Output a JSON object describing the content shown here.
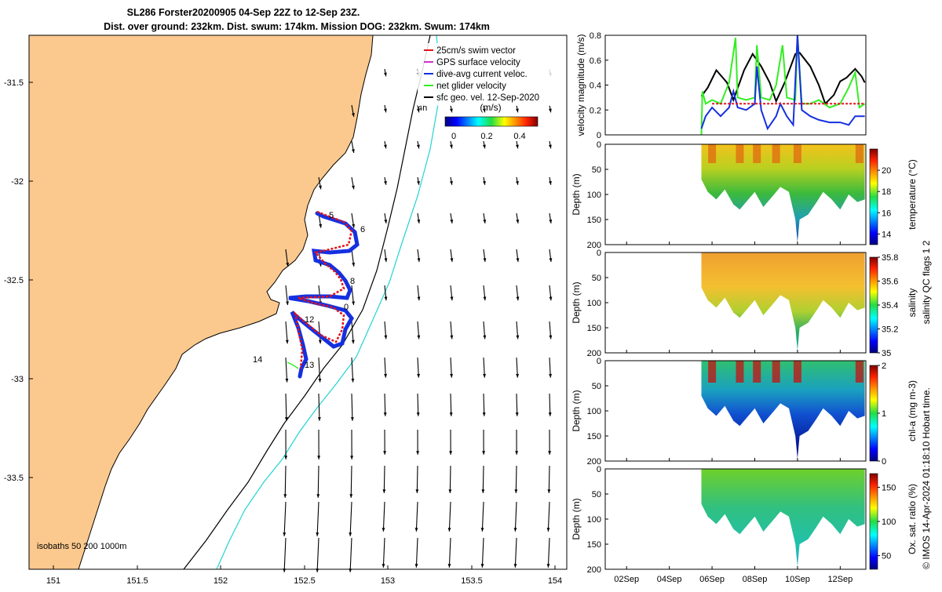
{
  "title": {
    "line1": "SL286 Forster20200905 04-Sep 22Z to 12-Sep 23Z.",
    "line2": "Dist. over ground: 232km. Dist. swum: 174km. Mission DOG: 232km. Swum: 174km"
  },
  "colors": {
    "land": "#fbc98e",
    "swim": "#e4121b",
    "gps": "#cc33cc",
    "current": "#1530e0",
    "net": "#33ee22",
    "sfc": "#000000",
    "iso_near": "#000000",
    "iso_far": "#22d3d3"
  },
  "map": {
    "xticks": [
      "151",
      "151.5",
      "152",
      "152.5",
      "153",
      "153.5",
      "154"
    ],
    "yticks": [
      "-31.5",
      "-32",
      "-32.5",
      "-33",
      "-33.5"
    ],
    "legend": [
      {
        "label": "25cm/s swim vector",
        "color": "#e4121b"
      },
      {
        "label": "GPS surface velocity",
        "color": "#cc33cc"
      },
      {
        "label": "dive-avg current veloc.",
        "color": "#1530e0"
      },
      {
        "label": "net glider velocity",
        "color": "#33ee22"
      },
      {
        "label": "sfc geo. vel. 12-Sep-2020",
        "color": "#000000"
      }
    ],
    "colorbar_label": "(m/s)",
    "colorbar_ticks": [
      "0",
      "0.2",
      "0.4"
    ],
    "isobaths_label": "isobaths 50 200  1000m",
    "day_labels": [
      "4h",
      "5",
      "6",
      "8",
      "0",
      "12",
      "13",
      "14"
    ]
  },
  "chart_data": [
    {
      "type": "line",
      "ylabel": "velocity magnitude (m/s)",
      "ylim": [
        0,
        0.8
      ],
      "yticks": [
        "0",
        "0.2",
        "0.4",
        "0.6",
        "0.8"
      ],
      "series": [
        {
          "color": "#000000",
          "values": [
            [
              5.5,
              0.31
            ],
            [
              5.8,
              0.38
            ],
            [
              6.2,
              0.52
            ],
            [
              6.7,
              0.42
            ],
            [
              7.0,
              0.28
            ],
            [
              7.5,
              0.52
            ],
            [
              7.9,
              0.65
            ],
            [
              8.3,
              0.55
            ],
            [
              8.7,
              0.42
            ],
            [
              9.0,
              0.27
            ],
            [
              9.4,
              0.42
            ],
            [
              9.9,
              0.65
            ],
            [
              10.1,
              0.66
            ],
            [
              10.6,
              0.55
            ],
            [
              11.0,
              0.4
            ],
            [
              11.3,
              0.25
            ],
            [
              11.7,
              0.32
            ],
            [
              12.0,
              0.43
            ],
            [
              12.3,
              0.46
            ],
            [
              12.7,
              0.53
            ],
            [
              13.0,
              0.47
            ],
            [
              13.15,
              0.42
            ]
          ]
        },
        {
          "color": "#33ee22",
          "values": [
            [
              5.5,
              0.0
            ],
            [
              5.55,
              0.35
            ],
            [
              5.7,
              0.25
            ],
            [
              6.0,
              0.28
            ],
            [
              6.4,
              0.25
            ],
            [
              6.8,
              0.42
            ],
            [
              7.1,
              0.78
            ],
            [
              7.2,
              0.3
            ],
            [
              7.6,
              0.28
            ],
            [
              8.0,
              0.3
            ],
            [
              8.1,
              0.72
            ],
            [
              8.3,
              0.3
            ],
            [
              8.7,
              0.28
            ],
            [
              9.0,
              0.4
            ],
            [
              9.3,
              0.72
            ],
            [
              9.5,
              0.3
            ],
            [
              9.9,
              0.28
            ],
            [
              10.0,
              0.8
            ],
            [
              10.2,
              0.25
            ],
            [
              10.6,
              0.25
            ],
            [
              11.0,
              0.28
            ],
            [
              11.5,
              0.22
            ],
            [
              12.0,
              0.25
            ],
            [
              12.4,
              0.38
            ],
            [
              12.7,
              0.5
            ],
            [
              12.9,
              0.22
            ],
            [
              13.15,
              0.25
            ]
          ]
        },
        {
          "color": "#1530e0",
          "values": [
            [
              5.5,
              0.05
            ],
            [
              5.7,
              0.15
            ],
            [
              6.0,
              0.22
            ],
            [
              6.4,
              0.15
            ],
            [
              6.8,
              0.22
            ],
            [
              7.0,
              0.35
            ],
            [
              7.2,
              0.22
            ],
            [
              7.6,
              0.2
            ],
            [
              8.0,
              0.25
            ],
            [
              8.1,
              0.55
            ],
            [
              8.3,
              0.2
            ],
            [
              8.6,
              0.05
            ],
            [
              9.0,
              0.15
            ],
            [
              9.2,
              0.25
            ],
            [
              9.5,
              0.15
            ],
            [
              9.8,
              0.08
            ],
            [
              10.0,
              0.8
            ],
            [
              10.2,
              0.2
            ],
            [
              10.6,
              0.15
            ],
            [
              11.0,
              0.12
            ],
            [
              11.5,
              0.1
            ],
            [
              12.0,
              0.1
            ],
            [
              12.4,
              0.08
            ],
            [
              12.7,
              0.15
            ],
            [
              13.15,
              0.15
            ]
          ]
        },
        {
          "color": "#e4121b",
          "dashed": true,
          "values": [
            [
              6.0,
              0.25
            ],
            [
              13.15,
              0.25
            ]
          ]
        }
      ]
    },
    {
      "type": "heatmap",
      "ylabel": "Depth (m)",
      "ylim": [
        0,
        200
      ],
      "colorbar_label": "temperature (°C)",
      "colorbar_ticks": [
        "14",
        "16",
        "18",
        "20"
      ],
      "clim": [
        13,
        22
      ]
    },
    {
      "type": "heatmap",
      "ylabel": "Depth (m)",
      "ylim": [
        0,
        200
      ],
      "colorbar_label": "salinity",
      "colorbar_ticks": [
        "35",
        "35.2",
        "35.4",
        "35.6",
        "35.8"
      ],
      "clim": [
        35,
        35.8
      ]
    },
    {
      "type": "heatmap",
      "ylabel": "Depth (m)",
      "ylim": [
        0,
        200
      ],
      "colorbar_label": "chl-a (mg m-3)",
      "colorbar_ticks": [
        "0",
        "1",
        "2"
      ],
      "clim": [
        0,
        2
      ]
    },
    {
      "type": "heatmap",
      "ylabel": "Depth (m)",
      "ylim": [
        0,
        200
      ],
      "colorbar_label": "Ox. sat. ratio (%)",
      "colorbar_ticks": [
        "50",
        "100",
        "150"
      ],
      "clim": [
        30,
        170
      ]
    }
  ],
  "depth_ticks": [
    "0",
    "50",
    "100",
    "150",
    "200"
  ],
  "time_axis": {
    "ticks": [
      "02Sep",
      "04Sep",
      "06Sep",
      "08Sep",
      "10Sep",
      "12Sep"
    ],
    "range": [
      1,
      13.2
    ]
  },
  "qc_note": "salinity  QC flags 1  2",
  "credit": "© IMOS 14-Apr-2024 01:18:10 Hobart time."
}
